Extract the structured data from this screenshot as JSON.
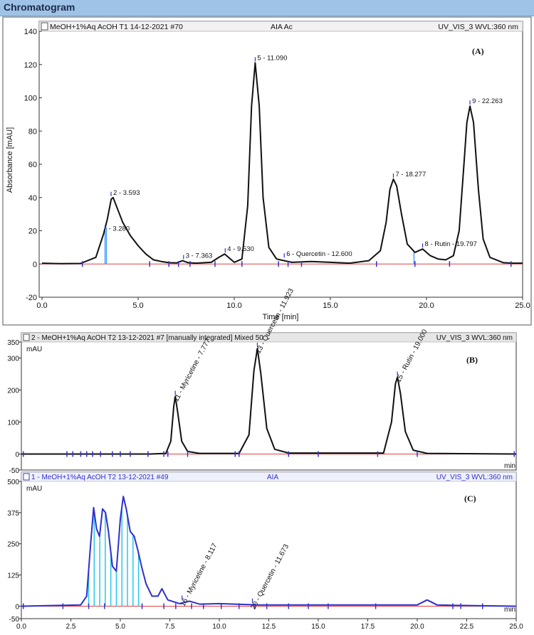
{
  "window": {
    "title": "Chromatogram"
  },
  "chart_data": [
    {
      "panel": "A",
      "type": "line",
      "header_left": "MeOH+1%Aq AcOH T1 14-12-2021 #70",
      "header_mid": "AIA Ac",
      "header_right": "UV_VIS_3 WVL:360 nm",
      "panel_label": "(A)",
      "xlabel": "Time [min]",
      "ylabel": "Absorbance [mAU]",
      "xlim": [
        0,
        25
      ],
      "ylim": [
        -20,
        140
      ],
      "xticks": [
        "0.0",
        "5.0",
        "10.0",
        "15.0",
        "20.0",
        "25.0"
      ],
      "yticks": [
        "-20",
        "0",
        "20",
        "40",
        "60",
        "80",
        "100",
        "120",
        "140"
      ],
      "series": [
        {
          "name": "trace",
          "color": "#111111",
          "x": [
            0.0,
            0.5,
            1.0,
            2.0,
            2.8,
            3.2,
            3.4,
            3.5,
            3.6,
            3.7,
            3.9,
            4.2,
            4.6,
            5.0,
            5.4,
            5.8,
            6.2,
            6.6,
            7.0,
            7.3,
            7.6,
            8.0,
            8.8,
            9.2,
            9.5,
            9.7,
            10.0,
            10.4,
            10.7,
            10.9,
            11.09,
            11.3,
            11.5,
            11.8,
            12.2,
            12.6,
            13.0,
            14.0,
            15.0,
            16.0,
            17.0,
            17.6,
            17.9,
            18.1,
            18.277,
            18.45,
            18.7,
            19.0,
            19.4,
            19.8,
            20.2,
            20.6,
            21.0,
            21.4,
            21.7,
            21.95,
            22.1,
            22.263,
            22.45,
            22.7,
            22.95,
            23.3,
            24.0,
            24.5,
            25.0
          ],
          "y": [
            0.5,
            0.3,
            0.2,
            0.3,
            4,
            18,
            27,
            33,
            39,
            40,
            34,
            25,
            17,
            11,
            6,
            2.5,
            1.5,
            0.8,
            0.6,
            2,
            0.8,
            0.5,
            1,
            4,
            6,
            4,
            1,
            3,
            35,
            95,
            121,
            95,
            40,
            10,
            3,
            2,
            1,
            1.5,
            1,
            0.5,
            2,
            8,
            25,
            45,
            51,
            47,
            30,
            12,
            7,
            9,
            5,
            3,
            2.5,
            5,
            20,
            60,
            85,
            95,
            85,
            45,
            15,
            4,
            0.8,
            0.5,
            0.5
          ]
        }
      ],
      "peaks": [
        {
          "label": "2 - 3.593",
          "x": 3.593,
          "y": 40
        },
        {
          "label": "- 3.280",
          "x": 3.28,
          "y": 20
        },
        {
          "label": "3 - 7.363",
          "x": 7.363,
          "y": 2
        },
        {
          "label": "4 - 9.530",
          "x": 9.53,
          "y": 6
        },
        {
          "label": "5 - 11.090",
          "x": 11.09,
          "y": 121
        },
        {
          "label": "6 - Quercetin - 12.600",
          "x": 12.6,
          "y": 3
        },
        {
          "label": "7 - 18.277",
          "x": 18.277,
          "y": 51
        },
        {
          "label": "8 - Rutin - 19.797",
          "x": 19.797,
          "y": 9
        },
        {
          "label": "9 - 22.263",
          "x": 22.263,
          "y": 95
        }
      ]
    },
    {
      "panel": "B",
      "type": "line",
      "header_left": "2 - MeOH+1%Aq AcOH T2 13-12-2021 #7 [manually integrated] Mixed 50",
      "header_right": "UV_VIS_3 WVL:360 nm",
      "panel_label": "(B)",
      "yunit": "mAU",
      "xunit": "min",
      "xlim": [
        0,
        25
      ],
      "ylim": [
        -50,
        350
      ],
      "yticks": [
        "-50",
        "0",
        "100",
        "200",
        "300",
        "350"
      ],
      "series": [
        {
          "name": "trace",
          "color": "#111111",
          "x": [
            0,
            6.5,
            7.3,
            7.55,
            7.7,
            7.777,
            7.9,
            8.1,
            8.4,
            9,
            11,
            11.5,
            11.75,
            11.923,
            12.1,
            12.4,
            12.8,
            13.5,
            18.3,
            18.7,
            18.9,
            19.0,
            19.15,
            19.4,
            19.8,
            20.5,
            25
          ],
          "y": [
            0,
            0,
            2,
            40,
            150,
            180,
            130,
            40,
            8,
            2,
            2,
            60,
            260,
            330,
            250,
            80,
            15,
            3,
            3,
            100,
            220,
            240,
            190,
            70,
            12,
            2,
            0
          ]
        }
      ],
      "peaks": [
        {
          "label": "11 - Myricetine - 7.777",
          "x": 7.777,
          "y": 180
        },
        {
          "label": "13 - Quercetin - 11.923",
          "x": 11.923,
          "y": 330
        },
        {
          "label": "15 - Rutin - 19.000",
          "x": 19.0,
          "y": 240
        }
      ]
    },
    {
      "panel": "C",
      "type": "line",
      "header_left": "1 - MeOH+1%Aq AcOH T2 13-12-2021 #49",
      "header_mid": "AIA",
      "header_right": "UV_VIS_3 WVL:360 nm",
      "panel_label": "(C)",
      "yunit": "mAU",
      "xunit": "min",
      "xlim": [
        0,
        25
      ],
      "ylim": [
        -50,
        500
      ],
      "yticks": [
        "-50",
        "0",
        "125",
        "250",
        "375",
        "500"
      ],
      "xticks": [
        "0.0",
        "2.5",
        "5.0",
        "7.5",
        "10.0",
        "12.5",
        "15.0",
        "17.5",
        "20.0",
        "22.5",
        "25.0"
      ],
      "series": [
        {
          "name": "trace",
          "color": "#2f2fd0",
          "x": [
            0,
            3.0,
            3.3,
            3.5,
            3.65,
            3.8,
            3.95,
            4.1,
            4.25,
            4.4,
            4.6,
            4.8,
            5.0,
            5.15,
            5.3,
            5.5,
            5.7,
            5.9,
            6.1,
            6.3,
            6.6,
            6.9,
            7.1,
            7.4,
            8.0,
            8.5,
            9.0,
            10.0,
            12.0,
            15.0,
            18.0,
            20.0,
            20.5,
            21.0,
            22.0,
            25.0
          ],
          "y": [
            0,
            5,
            40,
            250,
            395,
            310,
            280,
            390,
            375,
            300,
            160,
            140,
            350,
            440,
            390,
            300,
            280,
            220,
            150,
            90,
            40,
            40,
            70,
            25,
            10,
            20,
            8,
            10,
            5,
            5,
            5,
            5,
            25,
            5,
            3,
            0
          ]
        }
      ],
      "peaks": [
        {
          "label": "16 - Myricetine - 8.117",
          "x": 8.117,
          "y": 20
        },
        {
          "label": "20 - Quercetin - 11.673",
          "x": 11.673,
          "y": 8
        }
      ]
    }
  ]
}
